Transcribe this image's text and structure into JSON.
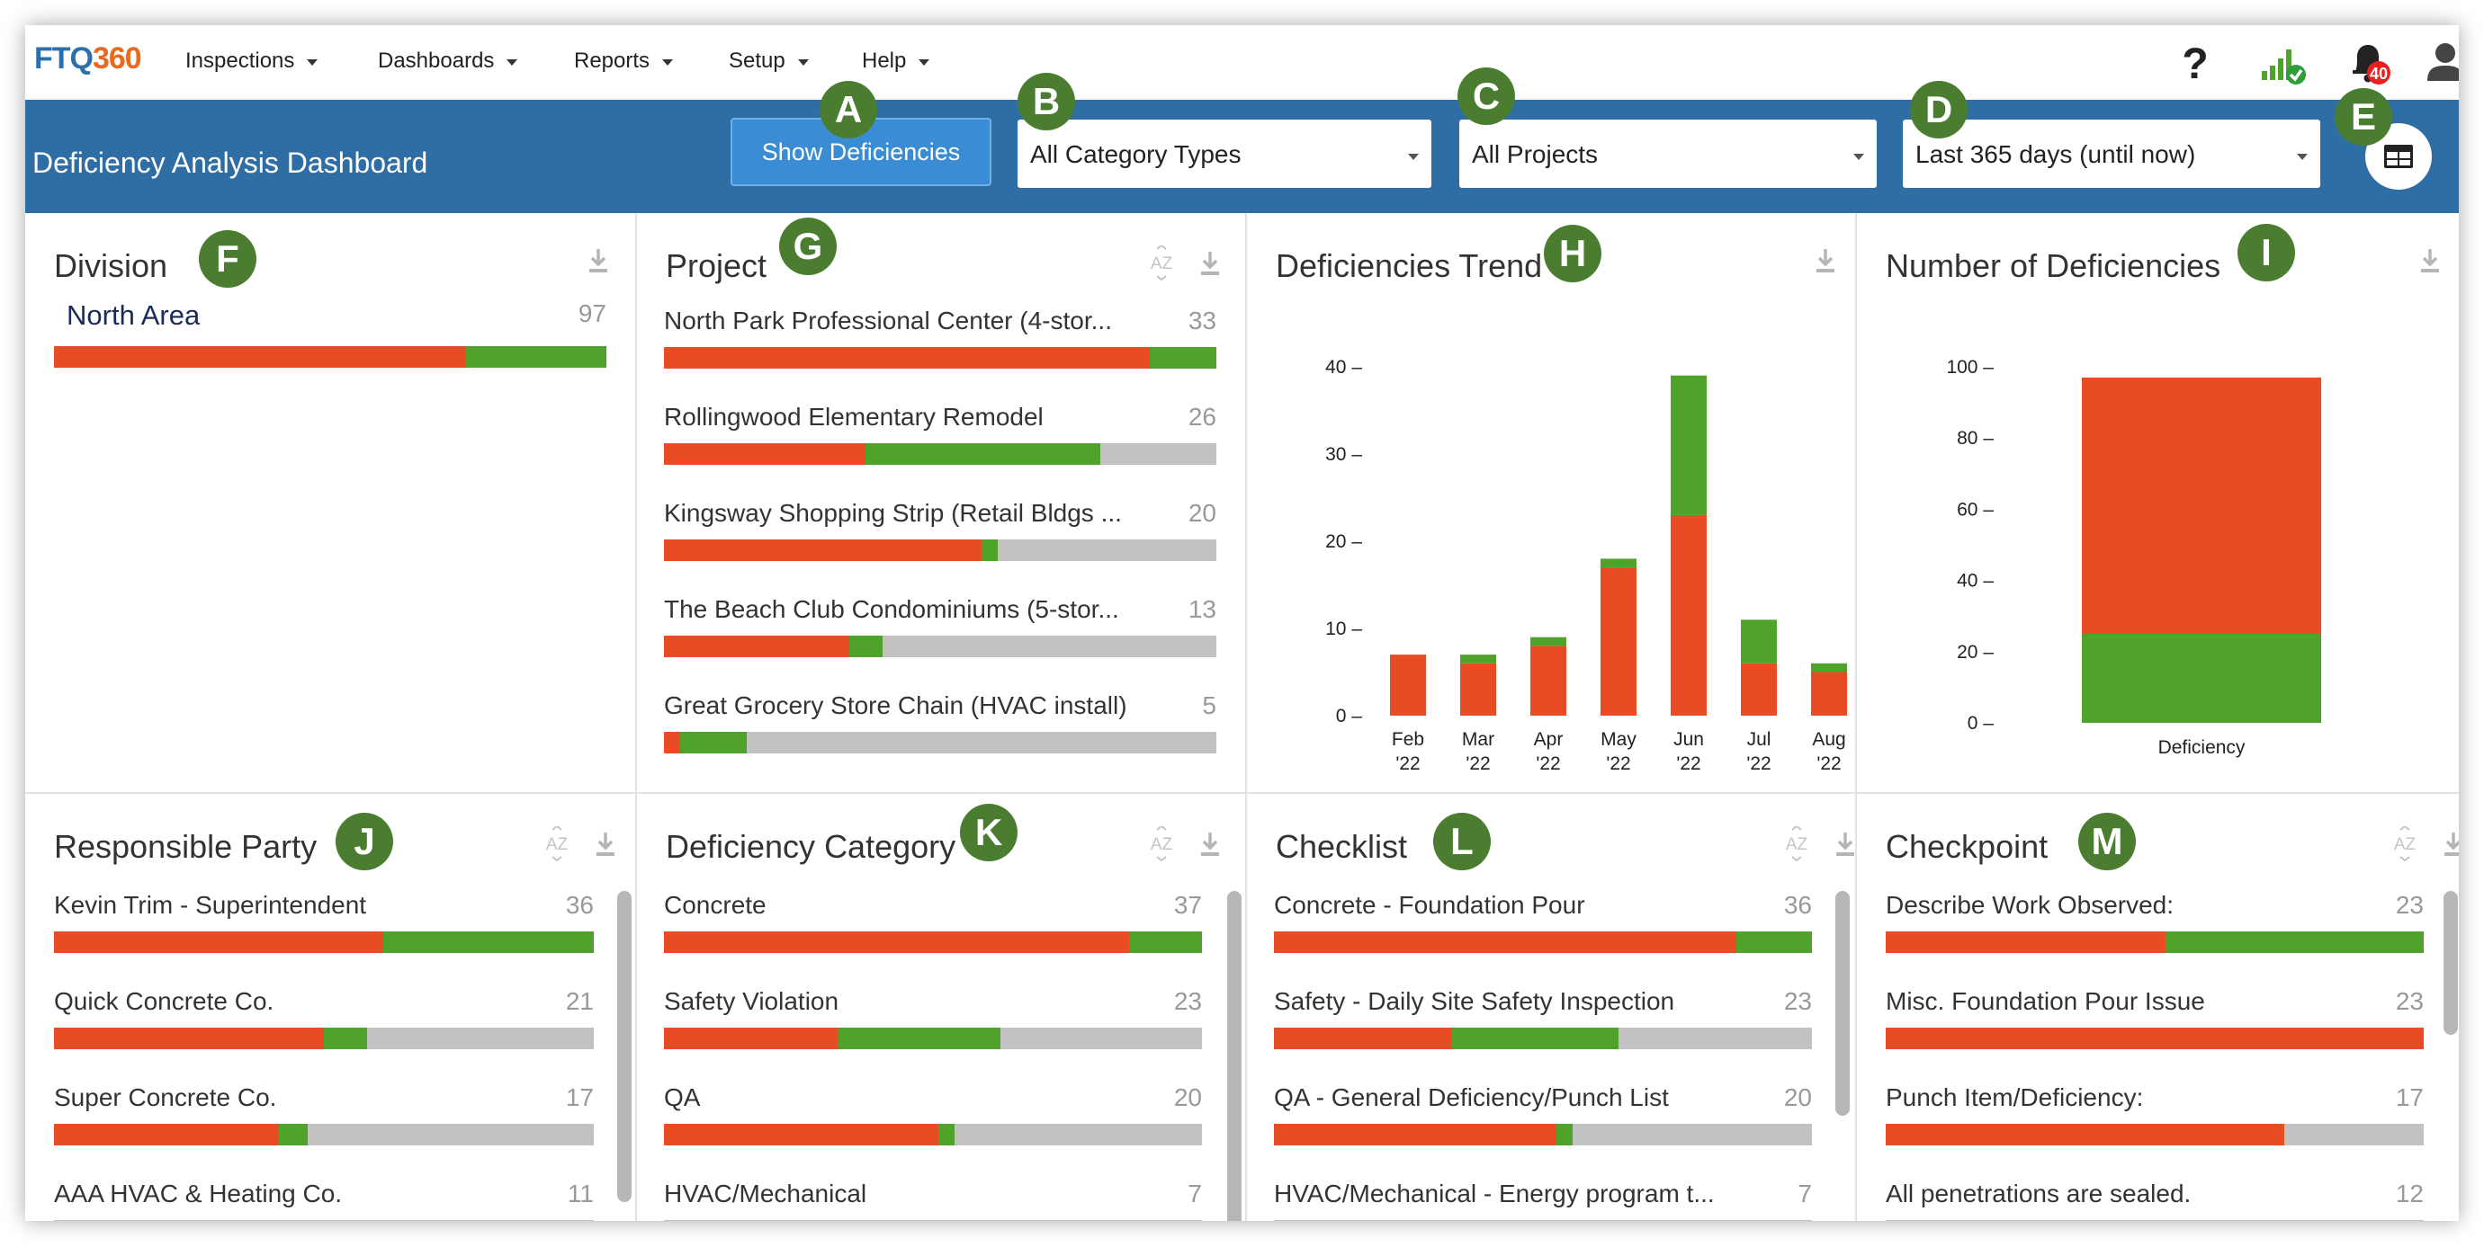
{
  "app": {
    "logo_part1": "FTQ",
    "logo_part2": "360",
    "menu": [
      {
        "label": "Inspections"
      },
      {
        "label": "Dashboards"
      },
      {
        "label": "Reports"
      },
      {
        "label": "Setup"
      },
      {
        "label": "Help"
      }
    ],
    "notification_count": "40"
  },
  "header": {
    "title": "Deficiency Analysis Dashboard",
    "show_button": "Show Deficiencies",
    "filters": {
      "category": "All Category Types",
      "project": "All Projects",
      "date_range": "Last 365 days (until now)"
    }
  },
  "markers": [
    "A",
    "B",
    "C",
    "D",
    "E",
    "F",
    "G",
    "H",
    "I",
    "J",
    "K",
    "L",
    "M"
  ],
  "colors": {
    "open": "#e84c23",
    "closed": "#4fa32a",
    "other": "#c2c2c2",
    "header": "#2f6ea5",
    "marker": "#4a7d2f"
  },
  "panels": {
    "division": {
      "title": "Division",
      "rows": [
        {
          "label": "North Area",
          "count": "97",
          "red": 0.745,
          "green": 0.255
        }
      ]
    },
    "project": {
      "title": "Project",
      "sort_label": "AZ",
      "rows": [
        {
          "label": "North Park Professional Center (4-stor...",
          "count": "33",
          "red": 0.88,
          "green": 0.12
        },
        {
          "label": "Rollingwood Elementary Remodel",
          "count": "26",
          "red": 0.365,
          "green": 0.425
        },
        {
          "label": "Kingsway Shopping Strip (Retail Bldgs ...",
          "count": "20",
          "red": 0.575,
          "green": 0.03
        },
        {
          "label": "The Beach Club Condominiums (5-stor...",
          "count": "13",
          "red": 0.335,
          "green": 0.06
        },
        {
          "label": "Great Grocery Store Chain (HVAC install)",
          "count": "5",
          "red": 0.03,
          "green": 0.12
        }
      ]
    },
    "responsible_party": {
      "title": "Responsible Party",
      "sort_label": "AZ",
      "rows": [
        {
          "label": "Kevin Trim - Superintendent",
          "count": "36",
          "red": 0.61,
          "green": 0.39
        },
        {
          "label": "Quick Concrete Co.",
          "count": "21",
          "red": 0.5,
          "green": 0.08
        },
        {
          "label": "Super Concrete Co.",
          "count": "17",
          "red": 0.415,
          "green": 0.055
        },
        {
          "label": "AAA HVAC & Heating Co.",
          "count": "11",
          "red": 0,
          "green": 0
        }
      ]
    },
    "deficiency_category": {
      "title": "Deficiency Category",
      "sort_label": "AZ",
      "rows": [
        {
          "label": "Concrete",
          "count": "37",
          "red": 0.865,
          "green": 0.135
        },
        {
          "label": "Safety Violation",
          "count": "23",
          "red": 0.325,
          "green": 0.3
        },
        {
          "label": "QA",
          "count": "20",
          "red": 0.51,
          "green": 0.03
        },
        {
          "label": "HVAC/Mechanical",
          "count": "7",
          "red": 0,
          "green": 0
        }
      ]
    },
    "checklist": {
      "title": "Checklist",
      "sort_label": "AZ",
      "rows": [
        {
          "label": "Concrete - Foundation Pour",
          "count": "36",
          "red": 0.86,
          "green": 0.14
        },
        {
          "label": "Safety - Daily Site Safety Inspection",
          "count": "23",
          "red": 0.33,
          "green": 0.31
        },
        {
          "label": "QA - General Deficiency/Punch List",
          "count": "20",
          "red": 0.525,
          "green": 0.03
        },
        {
          "label": "HVAC/Mechanical - Energy program t...",
          "count": "7",
          "red": 0,
          "green": 0
        }
      ]
    },
    "checkpoint": {
      "title": "Checkpoint",
      "sort_label": "AZ",
      "rows": [
        {
          "label": "Describe Work Observed:",
          "count": "23",
          "red": 0.52,
          "green": 0.48
        },
        {
          "label": "Misc. Foundation Pour Issue",
          "count": "23",
          "red": 1.0,
          "green": 0
        },
        {
          "label": "Punch Item/Deficiency:",
          "count": "17",
          "red": 0.74,
          "green": 0
        },
        {
          "label": "All penetrations are sealed.",
          "count": "12",
          "red": 0,
          "green": 0
        }
      ]
    }
  },
  "chart_data": [
    {
      "type": "bar",
      "title": "Deficiencies Trend",
      "categories": [
        "Feb '22",
        "Mar '22",
        "Apr '22",
        "May '22",
        "Jun '22",
        "Jul '22",
        "Aug '22"
      ],
      "category_lines": [
        [
          "Feb",
          "'22"
        ],
        [
          "Mar",
          "'22"
        ],
        [
          "Apr",
          "'22"
        ],
        [
          "May",
          "'22"
        ],
        [
          "Jun",
          "'22"
        ],
        [
          "Jul",
          "'22"
        ],
        [
          "Aug",
          "'22"
        ]
      ],
      "stacked": true,
      "series": [
        {
          "color": "#e84c23",
          "values": [
            7,
            6,
            8,
            17,
            23,
            6,
            5
          ]
        },
        {
          "color": "#4fa32a",
          "values": [
            0,
            1,
            1,
            1,
            16,
            5,
            1
          ]
        }
      ],
      "ylim": [
        0,
        40
      ],
      "yticks": [
        0,
        10,
        20,
        30,
        40
      ],
      "tick_suffix": " –",
      "grid": false
    },
    {
      "type": "bar",
      "title": "Number of Deficiencies",
      "categories": [
        "Deficiency"
      ],
      "stacked": true,
      "series": [
        {
          "color": "#4fa32a",
          "values": [
            25
          ]
        },
        {
          "color": "#e84c23",
          "values": [
            72
          ]
        }
      ],
      "ylim": [
        0,
        100
      ],
      "yticks": [
        0,
        20,
        40,
        60,
        80,
        100
      ],
      "tick_suffix": " –",
      "grid": false
    }
  ]
}
